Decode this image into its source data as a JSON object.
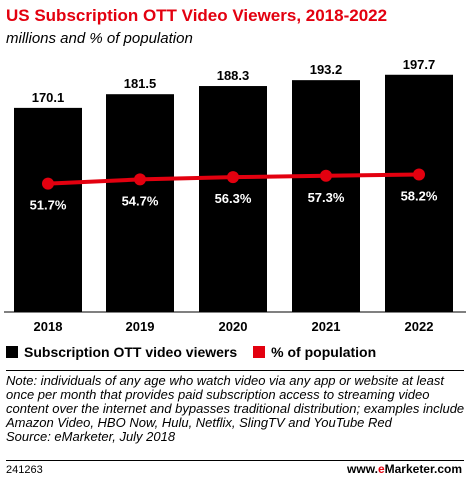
{
  "title": "US Subscription OTT Video Viewers, 2018-2022",
  "subtitle": "millions and % of population",
  "chart_data": {
    "type": "bar",
    "categories": [
      "2018",
      "2019",
      "2020",
      "2021",
      "2022"
    ],
    "series": [
      {
        "name": "Subscription OTT video viewers",
        "kind": "bar",
        "color": "#000000",
        "values": [
          170.1,
          181.5,
          188.3,
          193.2,
          197.7
        ],
        "labels": [
          "170.1",
          "181.5",
          "188.3",
          "193.2",
          "197.7"
        ]
      },
      {
        "name": "% of population",
        "kind": "line",
        "color": "#e3000f",
        "values": [
          51.7,
          54.7,
          56.3,
          57.3,
          58.2
        ],
        "labels": [
          "51.7%",
          "54.7%",
          "56.3%",
          "57.3%",
          "58.2%"
        ]
      }
    ],
    "ylim": [
      0,
      200
    ],
    "line_ylim": [
      0,
      100
    ],
    "legend_position": "bottom"
  },
  "note": "Note: individuals of any age who watch video via any app or website at least once per month that provides paid subscription access to streaming video content over the internet and bypasses traditional distribution; examples include Amazon Video, HBO Now, Hulu, Netflix, SlingTV and YouTube Red",
  "source": "Source: eMarketer, July 2018",
  "chart_id": "241263",
  "brand": {
    "prefix": "www.",
    "accent": "e",
    "suffix": "Marketer.com"
  }
}
